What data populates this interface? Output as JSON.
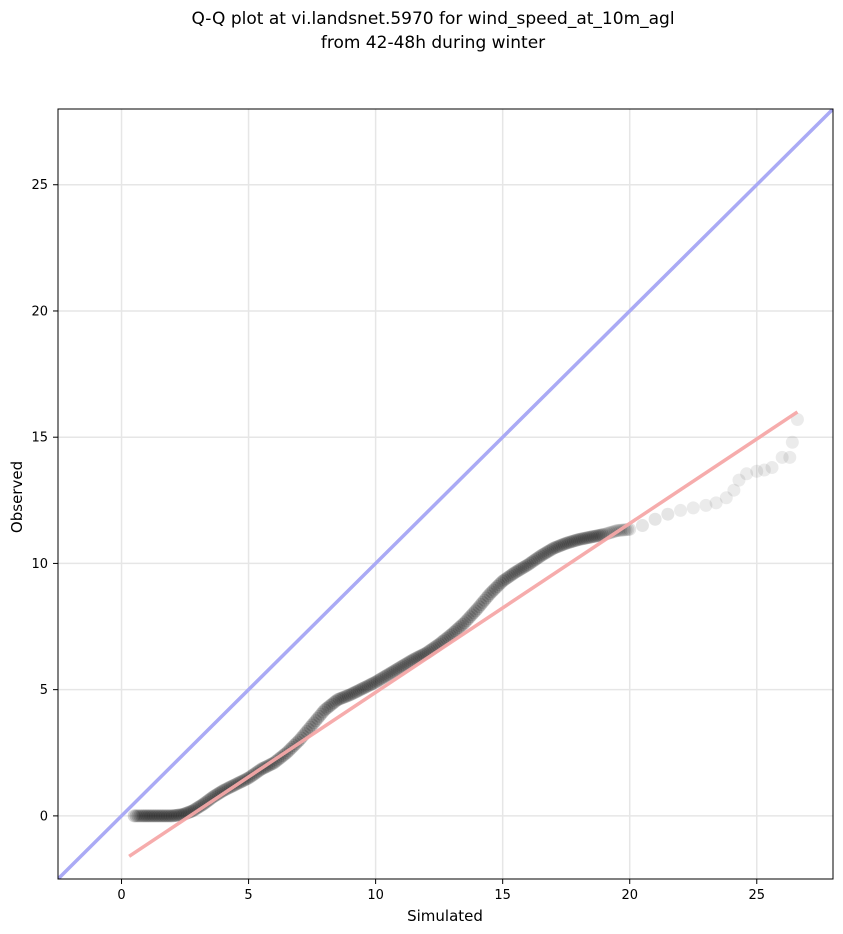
{
  "chart_data": {
    "type": "scatter",
    "title_lines": [
      "Q-Q plot at vi.landsnet.5970 for wind_speed_at_10m_agl",
      "from 42-48h during winter"
    ],
    "xlabel": "Simulated",
    "ylabel": "Observed",
    "xlim": [
      -2.5,
      28
    ],
    "ylim": [
      -2.5,
      28
    ],
    "xticks": [
      0,
      5,
      10,
      15,
      20,
      25
    ],
    "yticks": [
      0,
      5,
      10,
      15,
      20,
      25
    ],
    "grid": true,
    "identity_line": {
      "color": "#aaaaf5"
    },
    "fit_line": {
      "x": [
        0.3,
        26.6
      ],
      "y": [
        -1.6,
        16.0
      ],
      "color": "#f5a8a8"
    },
    "points_color": "#000000",
    "qq_points": {
      "x": [
        0.5,
        0.8,
        1.2,
        1.6,
        2.0,
        2.4,
        2.8,
        3.2,
        3.6,
        4.0,
        4.5,
        5.0,
        5.5,
        6.0,
        6.5,
        7.0,
        7.5,
        8.0,
        8.5,
        9.0,
        9.5,
        10.0,
        10.5,
        11.0,
        11.5,
        12.0,
        12.5,
        13.0,
        13.5,
        14.0,
        14.5,
        15.0,
        15.5,
        16.0,
        16.5,
        17.0,
        17.5,
        18.0,
        18.5,
        19.0,
        19.5,
        20.0,
        20.5,
        21.0,
        21.5,
        22.0,
        22.5,
        23.0,
        23.4,
        23.8,
        24.1,
        24.3,
        24.6,
        25.0,
        25.3,
        25.6,
        26.0,
        26.3,
        26.4,
        26.6
      ],
      "y": [
        0.0,
        0.0,
        0.0,
        0.0,
        0.0,
        0.05,
        0.2,
        0.45,
        0.75,
        1.0,
        1.25,
        1.5,
        1.85,
        2.1,
        2.5,
        3.0,
        3.6,
        4.2,
        4.6,
        4.8,
        5.05,
        5.3,
        5.6,
        5.9,
        6.2,
        6.45,
        6.8,
        7.2,
        7.65,
        8.2,
        8.8,
        9.3,
        9.65,
        9.95,
        10.3,
        10.6,
        10.8,
        10.95,
        11.05,
        11.15,
        11.3,
        11.35,
        11.5,
        11.75,
        11.95,
        12.1,
        12.2,
        12.3,
        12.4,
        12.6,
        12.9,
        13.3,
        13.55,
        13.65,
        13.7,
        13.8,
        14.2,
        14.2,
        14.8,
        15.7
      ]
    }
  }
}
